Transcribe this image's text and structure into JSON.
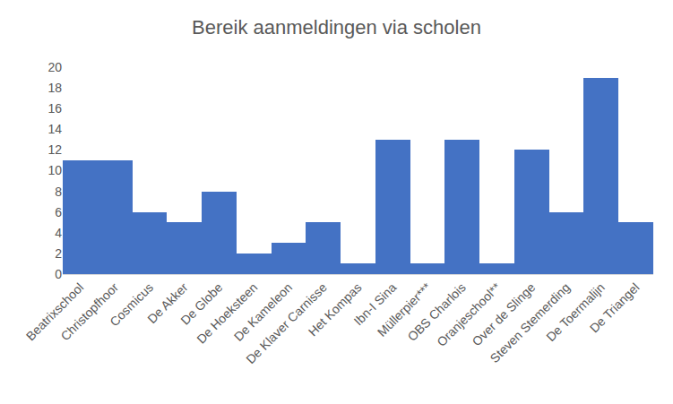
{
  "chart_data": {
    "type": "bar",
    "title": "Bereik aanmeldingen via scholen",
    "categories": [
      "Beatrixschool",
      "Christopfhoor",
      "Cosmicus",
      "De Akker",
      "De Globe",
      "De Hoeksteen",
      "De Kameleon",
      "De Klaver Carnisse",
      "Het Kompas",
      "Ibn-I Sina",
      "Müllerpier***",
      "OBS Charlois",
      "Oranjeschool**",
      "Over de Slinge",
      "Steven Stemerding",
      "De Toermalijn",
      "De Triangel"
    ],
    "values": [
      11,
      11,
      6,
      5,
      8,
      2,
      3,
      5,
      1,
      13,
      1,
      13,
      1,
      12,
      6,
      19,
      5
    ],
    "color": "#4472c4",
    "ylim": [
      0,
      20
    ],
    "yticks": [
      0,
      2,
      4,
      6,
      8,
      10,
      12,
      14,
      16,
      18,
      20
    ],
    "grid": false
  }
}
